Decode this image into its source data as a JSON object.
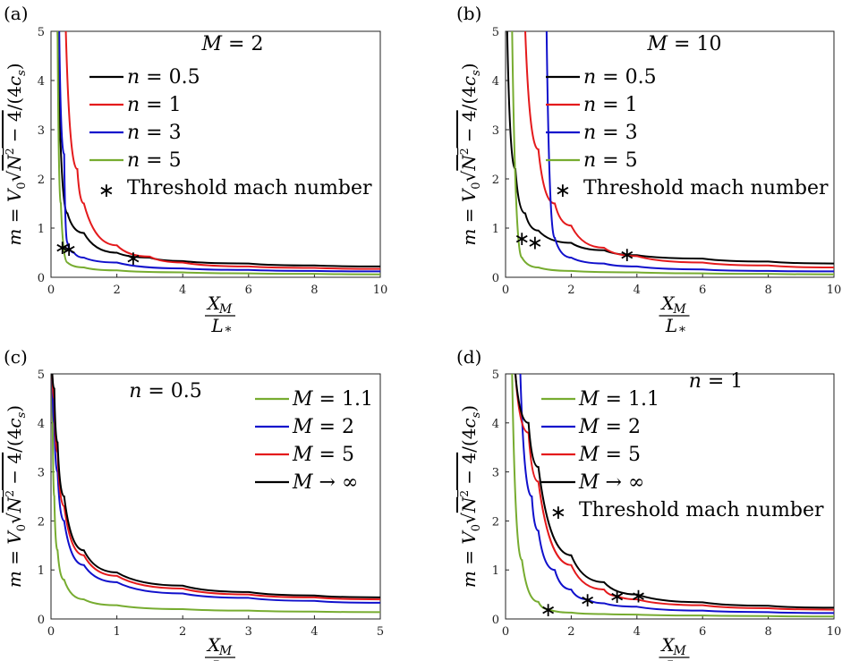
{
  "figure": {
    "x_unit_label": "X_M / L_*",
    "y_label": "m = V0 √(N² − 4)/(4c_s)"
  },
  "chart_data": [
    {
      "panel": "(a)",
      "type": "line",
      "annotation": "M = 2",
      "xlim": [
        0,
        10
      ],
      "ylim": [
        0,
        5
      ],
      "xticks": [
        0,
        2,
        4,
        6,
        8,
        10
      ],
      "yticks": [
        0,
        1,
        2,
        3,
        4,
        5
      ],
      "series": [
        {
          "name": "n = 0.5",
          "color": "#000000",
          "x": [
            0.2,
            0.5,
            1,
            2,
            3,
            4,
            6,
            8,
            10
          ],
          "y": [
            5,
            1.3,
            0.9,
            0.5,
            0.4,
            0.33,
            0.28,
            0.24,
            0.22
          ]
        },
        {
          "name": "n =1",
          "color": "#e41a1c",
          "x": [
            0.45,
            0.8,
            1,
            2,
            3,
            4,
            6,
            8,
            10
          ],
          "y": [
            5,
            2.2,
            1.5,
            0.65,
            0.42,
            0.3,
            0.22,
            0.19,
            0.17
          ]
        },
        {
          "name": "n =3",
          "color": "#1010cc",
          "x": [
            0.25,
            0.4,
            0.5,
            0.7,
            1,
            2,
            4,
            6,
            8,
            10
          ],
          "y": [
            5,
            2.5,
            0.7,
            0.5,
            0.4,
            0.3,
            0.18,
            0.15,
            0.13,
            0.12
          ]
        },
        {
          "name": "n =5",
          "color": "#77ac30",
          "x": [
            0.2,
            0.3,
            0.5,
            1,
            2,
            4,
            6,
            8,
            10
          ],
          "y": [
            5,
            1.5,
            0.3,
            0.2,
            0.14,
            0.1,
            0.08,
            0.07,
            0.06
          ]
        }
      ],
      "threshold_points": [
        {
          "x": 0.35,
          "y": 0.62
        },
        {
          "x": 0.55,
          "y": 0.58
        },
        {
          "x": 2.5,
          "y": 0.4
        }
      ],
      "threshold_label": "Threshold mach number"
    },
    {
      "panel": "(b)",
      "type": "line",
      "annotation": "M = 10",
      "xlim": [
        0,
        10
      ],
      "ylim": [
        0,
        5
      ],
      "xticks": [
        0,
        2,
        4,
        6,
        8,
        10
      ],
      "yticks": [
        0,
        1,
        2,
        3,
        4,
        5
      ],
      "series": [
        {
          "name": "n = 0.5",
          "color": "#000000",
          "x": [
            0.05,
            0.3,
            0.6,
            1,
            2,
            3,
            4,
            6,
            8,
            10
          ],
          "y": [
            5,
            2.2,
            1.3,
            0.95,
            0.7,
            0.55,
            0.45,
            0.38,
            0.32,
            0.28
          ]
        },
        {
          "name": "n =1",
          "color": "#e41a1c",
          "x": [
            0.6,
            1,
            1.5,
            2,
            3,
            4,
            6,
            8,
            10
          ],
          "y": [
            5,
            2.6,
            1.5,
            1.05,
            0.6,
            0.43,
            0.3,
            0.24,
            0.2
          ]
        },
        {
          "name": "n =3",
          "color": "#1010cc",
          "x": [
            1.25,
            1.5,
            2,
            3,
            4,
            6,
            8,
            10
          ],
          "y": [
            5,
            0.8,
            0.4,
            0.28,
            0.22,
            0.16,
            0.13,
            0.12
          ]
        },
        {
          "name": "n =5",
          "color": "#77ac30",
          "x": [
            0.2,
            0.5,
            1,
            2,
            4,
            6,
            8,
            10
          ],
          "y": [
            5,
            0.4,
            0.2,
            0.13,
            0.1,
            0.08,
            0.07,
            0.06
          ]
        }
      ],
      "threshold_points": [
        {
          "x": 0.5,
          "y": 0.8
        },
        {
          "x": 0.9,
          "y": 0.72
        },
        {
          "x": 3.7,
          "y": 0.47
        }
      ],
      "threshold_label": "Threshold mach number"
    },
    {
      "panel": "(c)",
      "type": "line",
      "annotation": "n = 0.5",
      "xlim": [
        0,
        5
      ],
      "ylim": [
        0,
        5
      ],
      "xticks": [
        0,
        1,
        2,
        3,
        4,
        5
      ],
      "yticks": [
        0,
        1,
        2,
        3,
        4,
        5
      ],
      "series": [
        {
          "name": "M = 1.1",
          "color": "#77ac30",
          "x": [
            0.02,
            0.05,
            0.1,
            0.2,
            0.5,
            1,
            2,
            3,
            4,
            5
          ],
          "y": [
            5,
            2.5,
            1.4,
            0.8,
            0.4,
            0.28,
            0.2,
            0.17,
            0.15,
            0.14
          ]
        },
        {
          "name": "M =2",
          "color": "#1010cc",
          "x": [
            0.02,
            0.05,
            0.1,
            0.2,
            0.5,
            1,
            2,
            3,
            4,
            5
          ],
          "y": [
            5,
            4,
            3.0,
            2.0,
            1.1,
            0.75,
            0.52,
            0.43,
            0.37,
            0.33
          ]
        },
        {
          "name": "M =5",
          "color": "#e41a1c",
          "x": [
            0.02,
            0.05,
            0.1,
            0.2,
            0.5,
            1,
            2,
            3,
            4,
            5
          ],
          "y": [
            5,
            4.5,
            3.4,
            2.3,
            1.3,
            0.88,
            0.62,
            0.5,
            0.44,
            0.4
          ]
        },
        {
          "name": "M → ∞",
          "color": "#000000",
          "x": [
            0.02,
            0.05,
            0.1,
            0.2,
            0.5,
            1,
            2,
            3,
            4,
            5
          ],
          "y": [
            5,
            4.7,
            3.6,
            2.5,
            1.4,
            0.95,
            0.68,
            0.55,
            0.48,
            0.44
          ]
        }
      ]
    },
    {
      "panel": "(d)",
      "type": "line",
      "annotation": "n = 1",
      "xlim": [
        0,
        10
      ],
      "ylim": [
        0,
        5
      ],
      "xticks": [
        0,
        2,
        4,
        6,
        8,
        10
      ],
      "yticks": [
        0,
        1,
        2,
        3,
        4,
        5
      ],
      "series": [
        {
          "name": "M =1.1",
          "color": "#77ac30",
          "x": [
            0.2,
            0.5,
            1,
            1.3,
            2,
            3,
            4,
            6,
            8,
            10
          ],
          "y": [
            5,
            1.2,
            0.35,
            0.2,
            0.13,
            0.1,
            0.09,
            0.07,
            0.06,
            0.05
          ]
        },
        {
          "name": "M =2",
          "color": "#1010cc",
          "x": [
            0.45,
            0.8,
            1,
            1.5,
            2,
            2.5,
            3,
            4,
            6,
            8,
            10
          ],
          "y": [
            5,
            2.5,
            1.8,
            1.0,
            0.6,
            0.4,
            0.32,
            0.25,
            0.17,
            0.14,
            0.12
          ]
        },
        {
          "name": "M =5",
          "color": "#e41a1c",
          "x": [
            0.3,
            0.7,
            1,
            2,
            3,
            3.4,
            4,
            6,
            8,
            10
          ],
          "y": [
            5,
            3.8,
            2.8,
            1.1,
            0.6,
            0.47,
            0.4,
            0.28,
            0.22,
            0.19
          ]
        },
        {
          "name": "M → ∞",
          "color": "#000000",
          "x": [
            0.3,
            0.7,
            1,
            2,
            3,
            4,
            6,
            8,
            10
          ],
          "y": [
            5,
            4.0,
            3.1,
            1.3,
            0.75,
            0.5,
            0.34,
            0.27,
            0.23
          ]
        }
      ],
      "threshold_points": [
        {
          "x": 1.3,
          "y": 0.2
        },
        {
          "x": 2.5,
          "y": 0.4
        },
        {
          "x": 3.4,
          "y": 0.47
        },
        {
          "x": 4.05,
          "y": 0.48
        }
      ],
      "threshold_label": "Threshold mach number"
    }
  ]
}
